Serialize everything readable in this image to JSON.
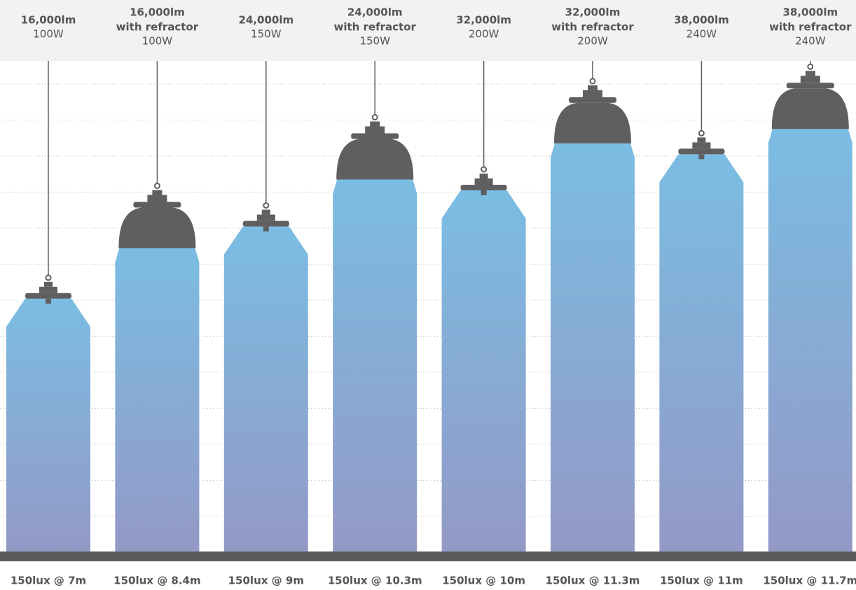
{
  "chart_data": {
    "type": "bar",
    "categories": [
      {
        "lumens": "16,000lm",
        "wattage": "100W"
      },
      {
        "lumens": "16,000lm",
        "note": "with refractor",
        "wattage": "100W"
      },
      {
        "lumens": "24,000lm",
        "wattage": "150W"
      },
      {
        "lumens": "24,000lm",
        "note": "with refractor",
        "wattage": "150W"
      },
      {
        "lumens": "32,000lm",
        "wattage": "200W"
      },
      {
        "lumens": "32,000lm",
        "note": "with refractor",
        "wattage": "200W"
      },
      {
        "lumens": "38,000lm",
        "wattage": "240W"
      },
      {
        "lumens": "38,000lm",
        "note": "with refractor",
        "wattage": "240W"
      }
    ],
    "values": [
      7,
      8.4,
      9,
      10.3,
      10,
      11.3,
      11,
      11.7
    ],
    "value_labels": [
      "150lux @ 7m",
      "150lux @ 8.4m",
      "150lux @ 9m",
      "150lux @ 10.3m",
      "150lux @ 10m",
      "150lux @ 11.3m",
      "150lux @ 11m",
      "150lux @ 11.7m"
    ],
    "color": "#7bbde3"
  }
}
